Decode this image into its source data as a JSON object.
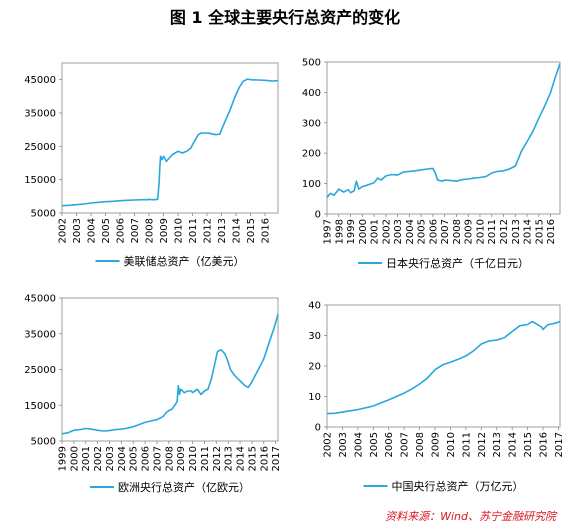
{
  "title": "图 1  全球主要央行总资产的变化",
  "source": "资料来源：Wind、苏宁金融研究院",
  "colors": {
    "line": "#2aa7dc",
    "axis": "#888888"
  },
  "chart_data": [
    {
      "id": "fed",
      "type": "line",
      "legend": "美联储总资产（亿美元）",
      "ylim": [
        5000,
        50000
      ],
      "yticks": [
        5000,
        15000,
        25000,
        35000,
        45000
      ],
      "xlim": [
        2002,
        2016.9
      ],
      "xticks": [
        2002,
        2003,
        2004,
        2005,
        2006,
        2007,
        2008,
        2009,
        2010,
        2011,
        2012,
        2013,
        2014,
        2015,
        2016
      ],
      "points": [
        [
          2002.0,
          7200
        ],
        [
          2002.5,
          7300
        ],
        [
          2003.0,
          7500
        ],
        [
          2003.5,
          7700
        ],
        [
          2004.0,
          8000
        ],
        [
          2004.5,
          8200
        ],
        [
          2005.0,
          8400
        ],
        [
          2005.5,
          8500
        ],
        [
          2006.0,
          8700
        ],
        [
          2006.5,
          8800
        ],
        [
          2007.0,
          8900
        ],
        [
          2007.5,
          9000
        ],
        [
          2007.9,
          9000
        ],
        [
          2008.0,
          9100
        ],
        [
          2008.2,
          9000
        ],
        [
          2008.4,
          9000
        ],
        [
          2008.6,
          9100
        ],
        [
          2008.7,
          14000
        ],
        [
          2008.75,
          19000
        ],
        [
          2008.8,
          22000
        ],
        [
          2008.9,
          21000
        ],
        [
          2009.0,
          22000
        ],
        [
          2009.2,
          20500
        ],
        [
          2009.4,
          21500
        ],
        [
          2009.6,
          22500
        ],
        [
          2009.8,
          23000
        ],
        [
          2010.0,
          23500
        ],
        [
          2010.3,
          23000
        ],
        [
          2010.6,
          23500
        ],
        [
          2010.9,
          24500
        ],
        [
          2011.0,
          25500
        ],
        [
          2011.2,
          27000
        ],
        [
          2011.4,
          28500
        ],
        [
          2011.6,
          29000
        ],
        [
          2011.8,
          29000
        ],
        [
          2012.0,
          29000
        ],
        [
          2012.3,
          28800
        ],
        [
          2012.6,
          28500
        ],
        [
          2012.9,
          28700
        ],
        [
          2013.0,
          30000
        ],
        [
          2013.3,
          33000
        ],
        [
          2013.6,
          36000
        ],
        [
          2013.9,
          39500
        ],
        [
          2014.2,
          42500
        ],
        [
          2014.5,
          44500
        ],
        [
          2014.8,
          45200
        ],
        [
          2015.0,
          45000
        ],
        [
          2015.5,
          44900
        ],
        [
          2016.0,
          44800
        ],
        [
          2016.5,
          44600
        ],
        [
          2016.9,
          44700
        ]
      ]
    },
    {
      "id": "boj",
      "type": "line",
      "legend": "日本央行总资产（千亿日元）",
      "ylim": [
        0,
        500
      ],
      "yticks": [
        0,
        100,
        200,
        300,
        400,
        500
      ],
      "xlim": [
        1997,
        2016.8
      ],
      "xticks": [
        1997,
        1998,
        1999,
        2000,
        2001,
        2002,
        2003,
        2004,
        2005,
        2006,
        2007,
        2008,
        2009,
        2010,
        2011,
        2012,
        2013,
        2014,
        2015,
        2016
      ],
      "points": [
        [
          1997.0,
          55
        ],
        [
          1997.3,
          68
        ],
        [
          1997.6,
          62
        ],
        [
          1998.0,
          82
        ],
        [
          1998.4,
          72
        ],
        [
          1998.8,
          80
        ],
        [
          1999.0,
          70
        ],
        [
          1999.3,
          76
        ],
        [
          1999.5,
          108
        ],
        [
          1999.7,
          82
        ],
        [
          2000.0,
          90
        ],
        [
          2000.5,
          96
        ],
        [
          2001.0,
          103
        ],
        [
          2001.3,
          118
        ],
        [
          2001.6,
          112
        ],
        [
          2002.0,
          125
        ],
        [
          2002.5,
          130
        ],
        [
          2003.0,
          128
        ],
        [
          2003.5,
          138
        ],
        [
          2004.0,
          140
        ],
        [
          2004.5,
          142
        ],
        [
          2005.0,
          145
        ],
        [
          2005.5,
          148
        ],
        [
          2006.0,
          150
        ],
        [
          2006.2,
          135
        ],
        [
          2006.4,
          112
        ],
        [
          2006.8,
          108
        ],
        [
          2007.0,
          112
        ],
        [
          2007.5,
          110
        ],
        [
          2008.0,
          108
        ],
        [
          2008.5,
          113
        ],
        [
          2009.0,
          115
        ],
        [
          2009.5,
          118
        ],
        [
          2010.0,
          120
        ],
        [
          2010.5,
          123
        ],
        [
          2011.0,
          135
        ],
        [
          2011.5,
          140
        ],
        [
          2012.0,
          142
        ],
        [
          2012.5,
          148
        ],
        [
          2013.0,
          158
        ],
        [
          2013.2,
          175
        ],
        [
          2013.5,
          205
        ],
        [
          2014.0,
          238
        ],
        [
          2014.5,
          272
        ],
        [
          2015.0,
          315
        ],
        [
          2015.5,
          355
        ],
        [
          2016.0,
          400
        ],
        [
          2016.4,
          450
        ],
        [
          2016.8,
          495
        ]
      ]
    },
    {
      "id": "ecb",
      "type": "line",
      "legend": "欧洲央行总资产（亿欧元）",
      "ylim": [
        5000,
        45000
      ],
      "yticks": [
        5000,
        15000,
        25000,
        35000,
        45000
      ],
      "xlim": [
        1999,
        2017.2
      ],
      "xticks": [
        1999,
        2000,
        2001,
        2002,
        2003,
        2004,
        2005,
        2006,
        2007,
        2008,
        2009,
        2010,
        2011,
        2012,
        2013,
        2014,
        2015,
        2016,
        2017
      ],
      "points": [
        [
          1999.0,
          7000
        ],
        [
          1999.5,
          7300
        ],
        [
          2000.0,
          8000
        ],
        [
          2000.5,
          8200
        ],
        [
          2001.0,
          8500
        ],
        [
          2001.5,
          8300
        ],
        [
          2002.0,
          8000
        ],
        [
          2002.5,
          7800
        ],
        [
          2003.0,
          7900
        ],
        [
          2003.5,
          8200
        ],
        [
          2004.0,
          8300
        ],
        [
          2004.5,
          8600
        ],
        [
          2005.0,
          9000
        ],
        [
          2005.5,
          9600
        ],
        [
          2006.0,
          10200
        ],
        [
          2006.5,
          10600
        ],
        [
          2007.0,
          11000
        ],
        [
          2007.5,
          11800
        ],
        [
          2007.8,
          13000
        ],
        [
          2008.0,
          13500
        ],
        [
          2008.3,
          14000
        ],
        [
          2008.5,
          15000
        ],
        [
          2008.7,
          16000
        ],
        [
          2008.8,
          20500
        ],
        [
          2008.9,
          18000
        ],
        [
          2009.0,
          19500
        ],
        [
          2009.3,
          18500
        ],
        [
          2009.6,
          19000
        ],
        [
          2009.9,
          19000
        ],
        [
          2010.0,
          18500
        ],
        [
          2010.4,
          19500
        ],
        [
          2010.7,
          18000
        ],
        [
          2011.0,
          19000
        ],
        [
          2011.3,
          19500
        ],
        [
          2011.6,
          22500
        ],
        [
          2011.9,
          27000
        ],
        [
          2012.1,
          30000
        ],
        [
          2012.4,
          30500
        ],
        [
          2012.7,
          29500
        ],
        [
          2012.9,
          28000
        ],
        [
          2013.2,
          25000
        ],
        [
          2013.5,
          23500
        ],
        [
          2013.8,
          22500
        ],
        [
          2014.1,
          21500
        ],
        [
          2014.4,
          20500
        ],
        [
          2014.7,
          20000
        ],
        [
          2015.0,
          21500
        ],
        [
          2015.3,
          23500
        ],
        [
          2015.7,
          26000
        ],
        [
          2016.0,
          28000
        ],
        [
          2016.4,
          32000
        ],
        [
          2016.8,
          36000
        ],
        [
          2017.0,
          38000
        ],
        [
          2017.2,
          40500
        ]
      ]
    },
    {
      "id": "pboc",
      "type": "line",
      "legend": "中国央行总资产（万亿元）",
      "ylim": [
        0,
        40
      ],
      "yticks": [
        0,
        10,
        20,
        30,
        40
      ],
      "xlim": [
        2002,
        2017.1
      ],
      "xticks": [
        2002,
        2003,
        2004,
        2005,
        2006,
        2007,
        2008,
        2009,
        2010,
        2011,
        2012,
        2013,
        2014,
        2015,
        2016,
        2017
      ],
      "points": [
        [
          2002.0,
          4.4
        ],
        [
          2002.5,
          4.5
        ],
        [
          2003.0,
          4.9
        ],
        [
          2003.5,
          5.3
        ],
        [
          2004.0,
          5.7
        ],
        [
          2004.5,
          6.3
        ],
        [
          2005.0,
          6.9
        ],
        [
          2005.5,
          7.9
        ],
        [
          2006.0,
          8.9
        ],
        [
          2006.5,
          10.0
        ],
        [
          2007.0,
          11.1
        ],
        [
          2007.5,
          12.5
        ],
        [
          2008.0,
          14.1
        ],
        [
          2008.5,
          16.0
        ],
        [
          2009.0,
          18.8
        ],
        [
          2009.5,
          20.4
        ],
        [
          2010.0,
          21.2
        ],
        [
          2010.5,
          22.2
        ],
        [
          2011.0,
          23.3
        ],
        [
          2011.5,
          25.0
        ],
        [
          2012.0,
          27.2
        ],
        [
          2012.5,
          28.2
        ],
        [
          2013.0,
          28.5
        ],
        [
          2013.5,
          29.3
        ],
        [
          2014.0,
          31.3
        ],
        [
          2014.5,
          33.2
        ],
        [
          2015.0,
          33.6
        ],
        [
          2015.3,
          34.6
        ],
        [
          2015.6,
          33.7
        ],
        [
          2015.9,
          32.8
        ],
        [
          2016.0,
          32.0
        ],
        [
          2016.3,
          33.5
        ],
        [
          2016.6,
          33.8
        ],
        [
          2016.9,
          34.2
        ],
        [
          2017.1,
          34.6
        ]
      ]
    }
  ]
}
